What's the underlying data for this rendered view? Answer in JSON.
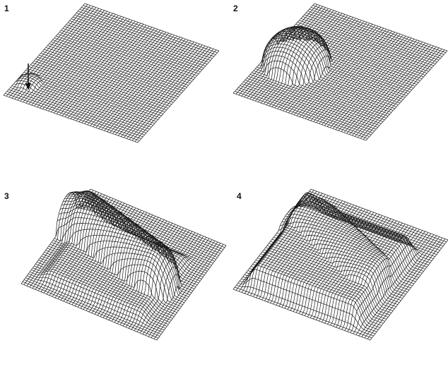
{
  "panels": [
    {
      "label": "1"
    },
    {
      "label": "2"
    },
    {
      "label": "3"
    },
    {
      "label": "4"
    }
  ]
}
